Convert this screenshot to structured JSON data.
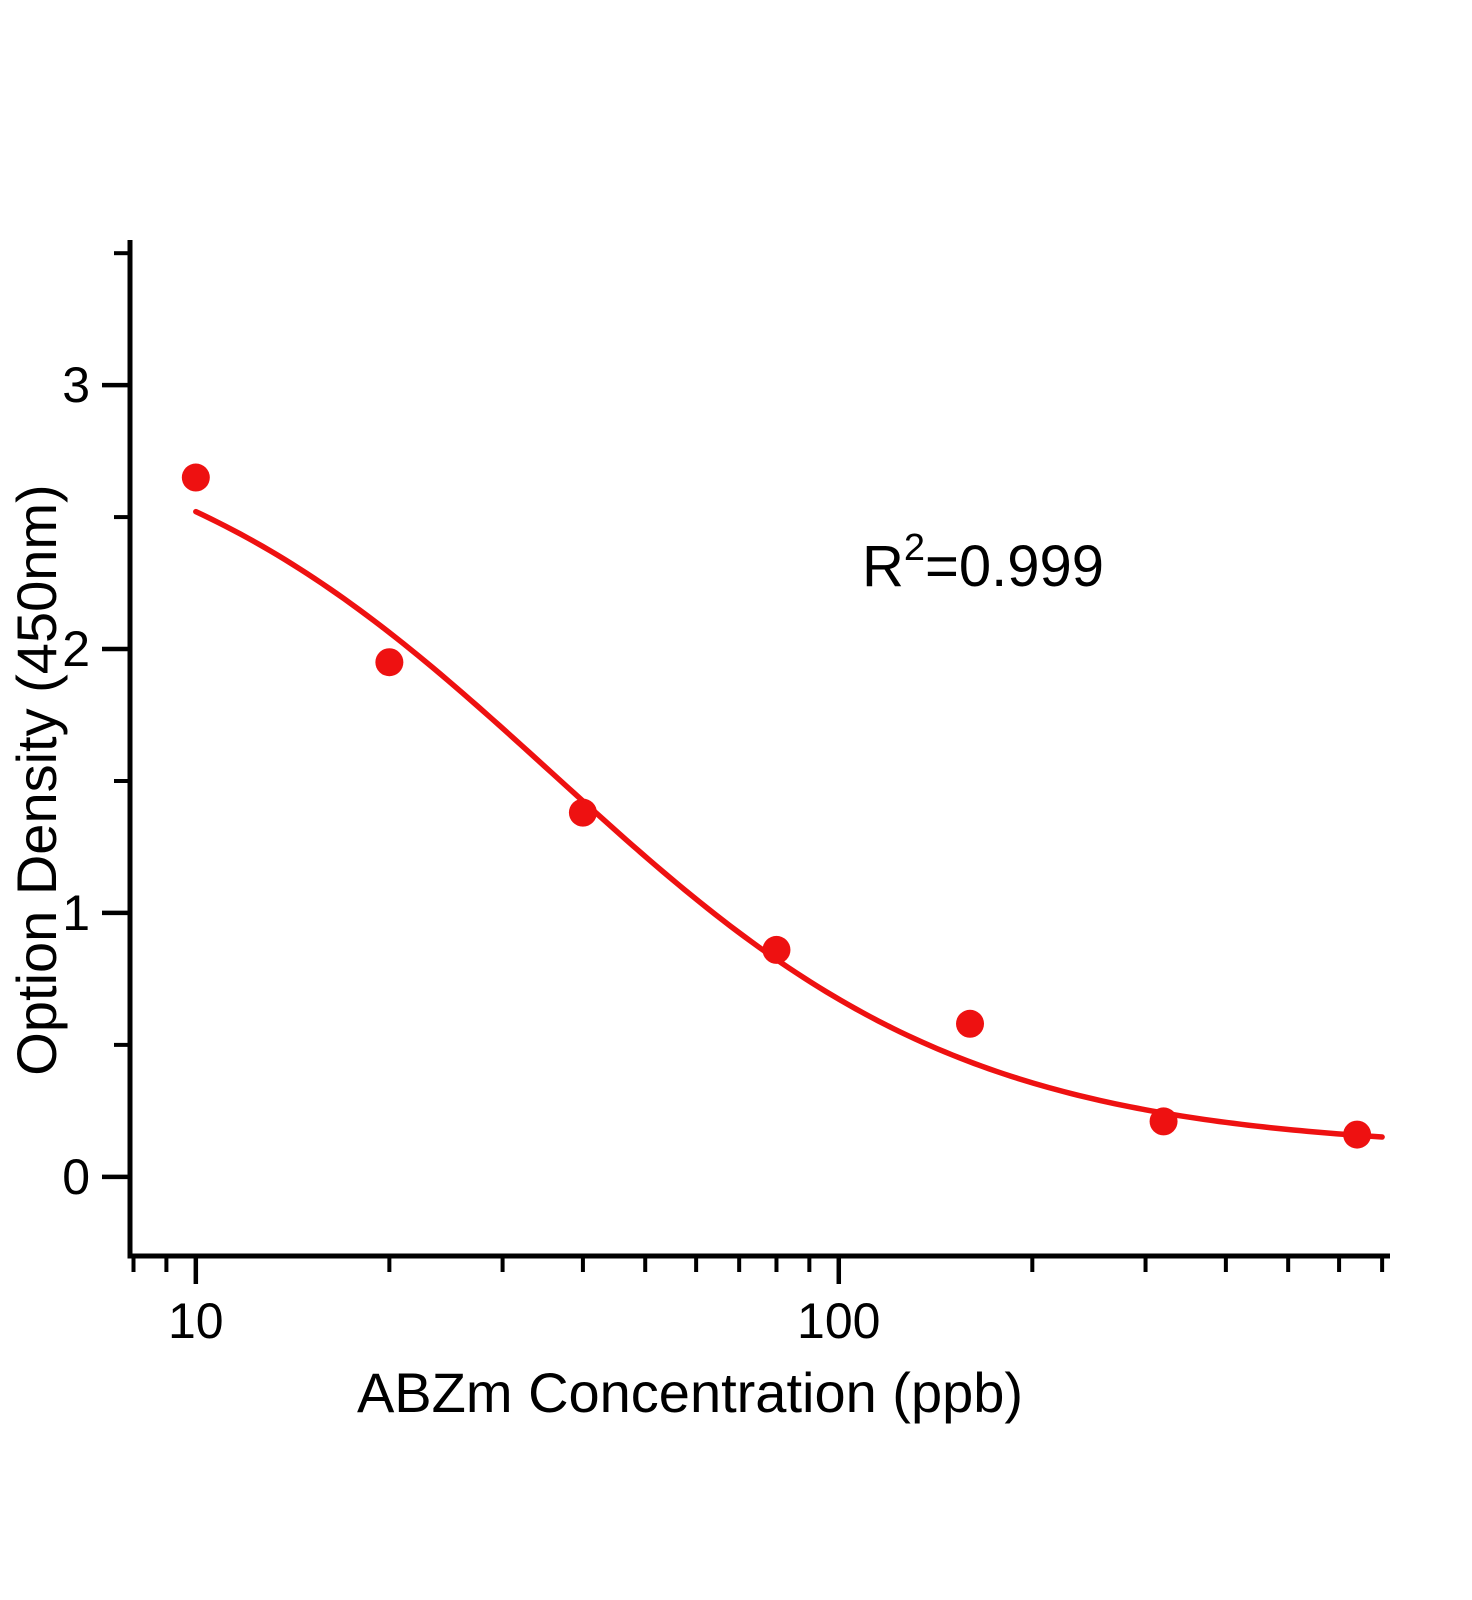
{
  "figure": {
    "background": "#ffffff"
  },
  "chart_data": {
    "type": "scatter",
    "title": "",
    "xlabel": "ABZm Concentration (ppb)",
    "ylabel": "Option Density (450nm)",
    "annotation": {
      "base": "R",
      "sup": "2",
      "rest": "=0.999"
    },
    "x_scale": "log",
    "grid": "off",
    "legend": "none",
    "xlim": [
      7.9,
      720
    ],
    "ylim": [
      -0.3,
      3.55
    ],
    "x_major_ticks": [
      10,
      100
    ],
    "x_major_tick_labels": [
      "10",
      "100"
    ],
    "x_minor_ticks": [
      8,
      9,
      20,
      30,
      40,
      50,
      60,
      70,
      80,
      90,
      200,
      300,
      400,
      500,
      600,
      700
    ],
    "y_major_ticks": [
      0,
      1,
      2,
      3
    ],
    "y_major_tick_labels": [
      "0",
      "1",
      "2",
      "3"
    ],
    "y_minor_ticks": [
      0.5,
      1.5,
      2.5,
      3.5
    ],
    "points": {
      "x": [
        10,
        20,
        40,
        80,
        160,
        320,
        640
      ],
      "y": [
        2.65,
        1.95,
        1.38,
        0.86,
        0.58,
        0.21,
        0.16
      ]
    },
    "fit": {
      "model": "4PL",
      "top": 2.95,
      "bottom": 0.1,
      "ic50": 36,
      "hill": 1.35,
      "x_start": 10,
      "x_end": 700
    },
    "colors": {
      "series": "#ee1111",
      "axis": "#000000",
      "text": "#000000"
    }
  }
}
